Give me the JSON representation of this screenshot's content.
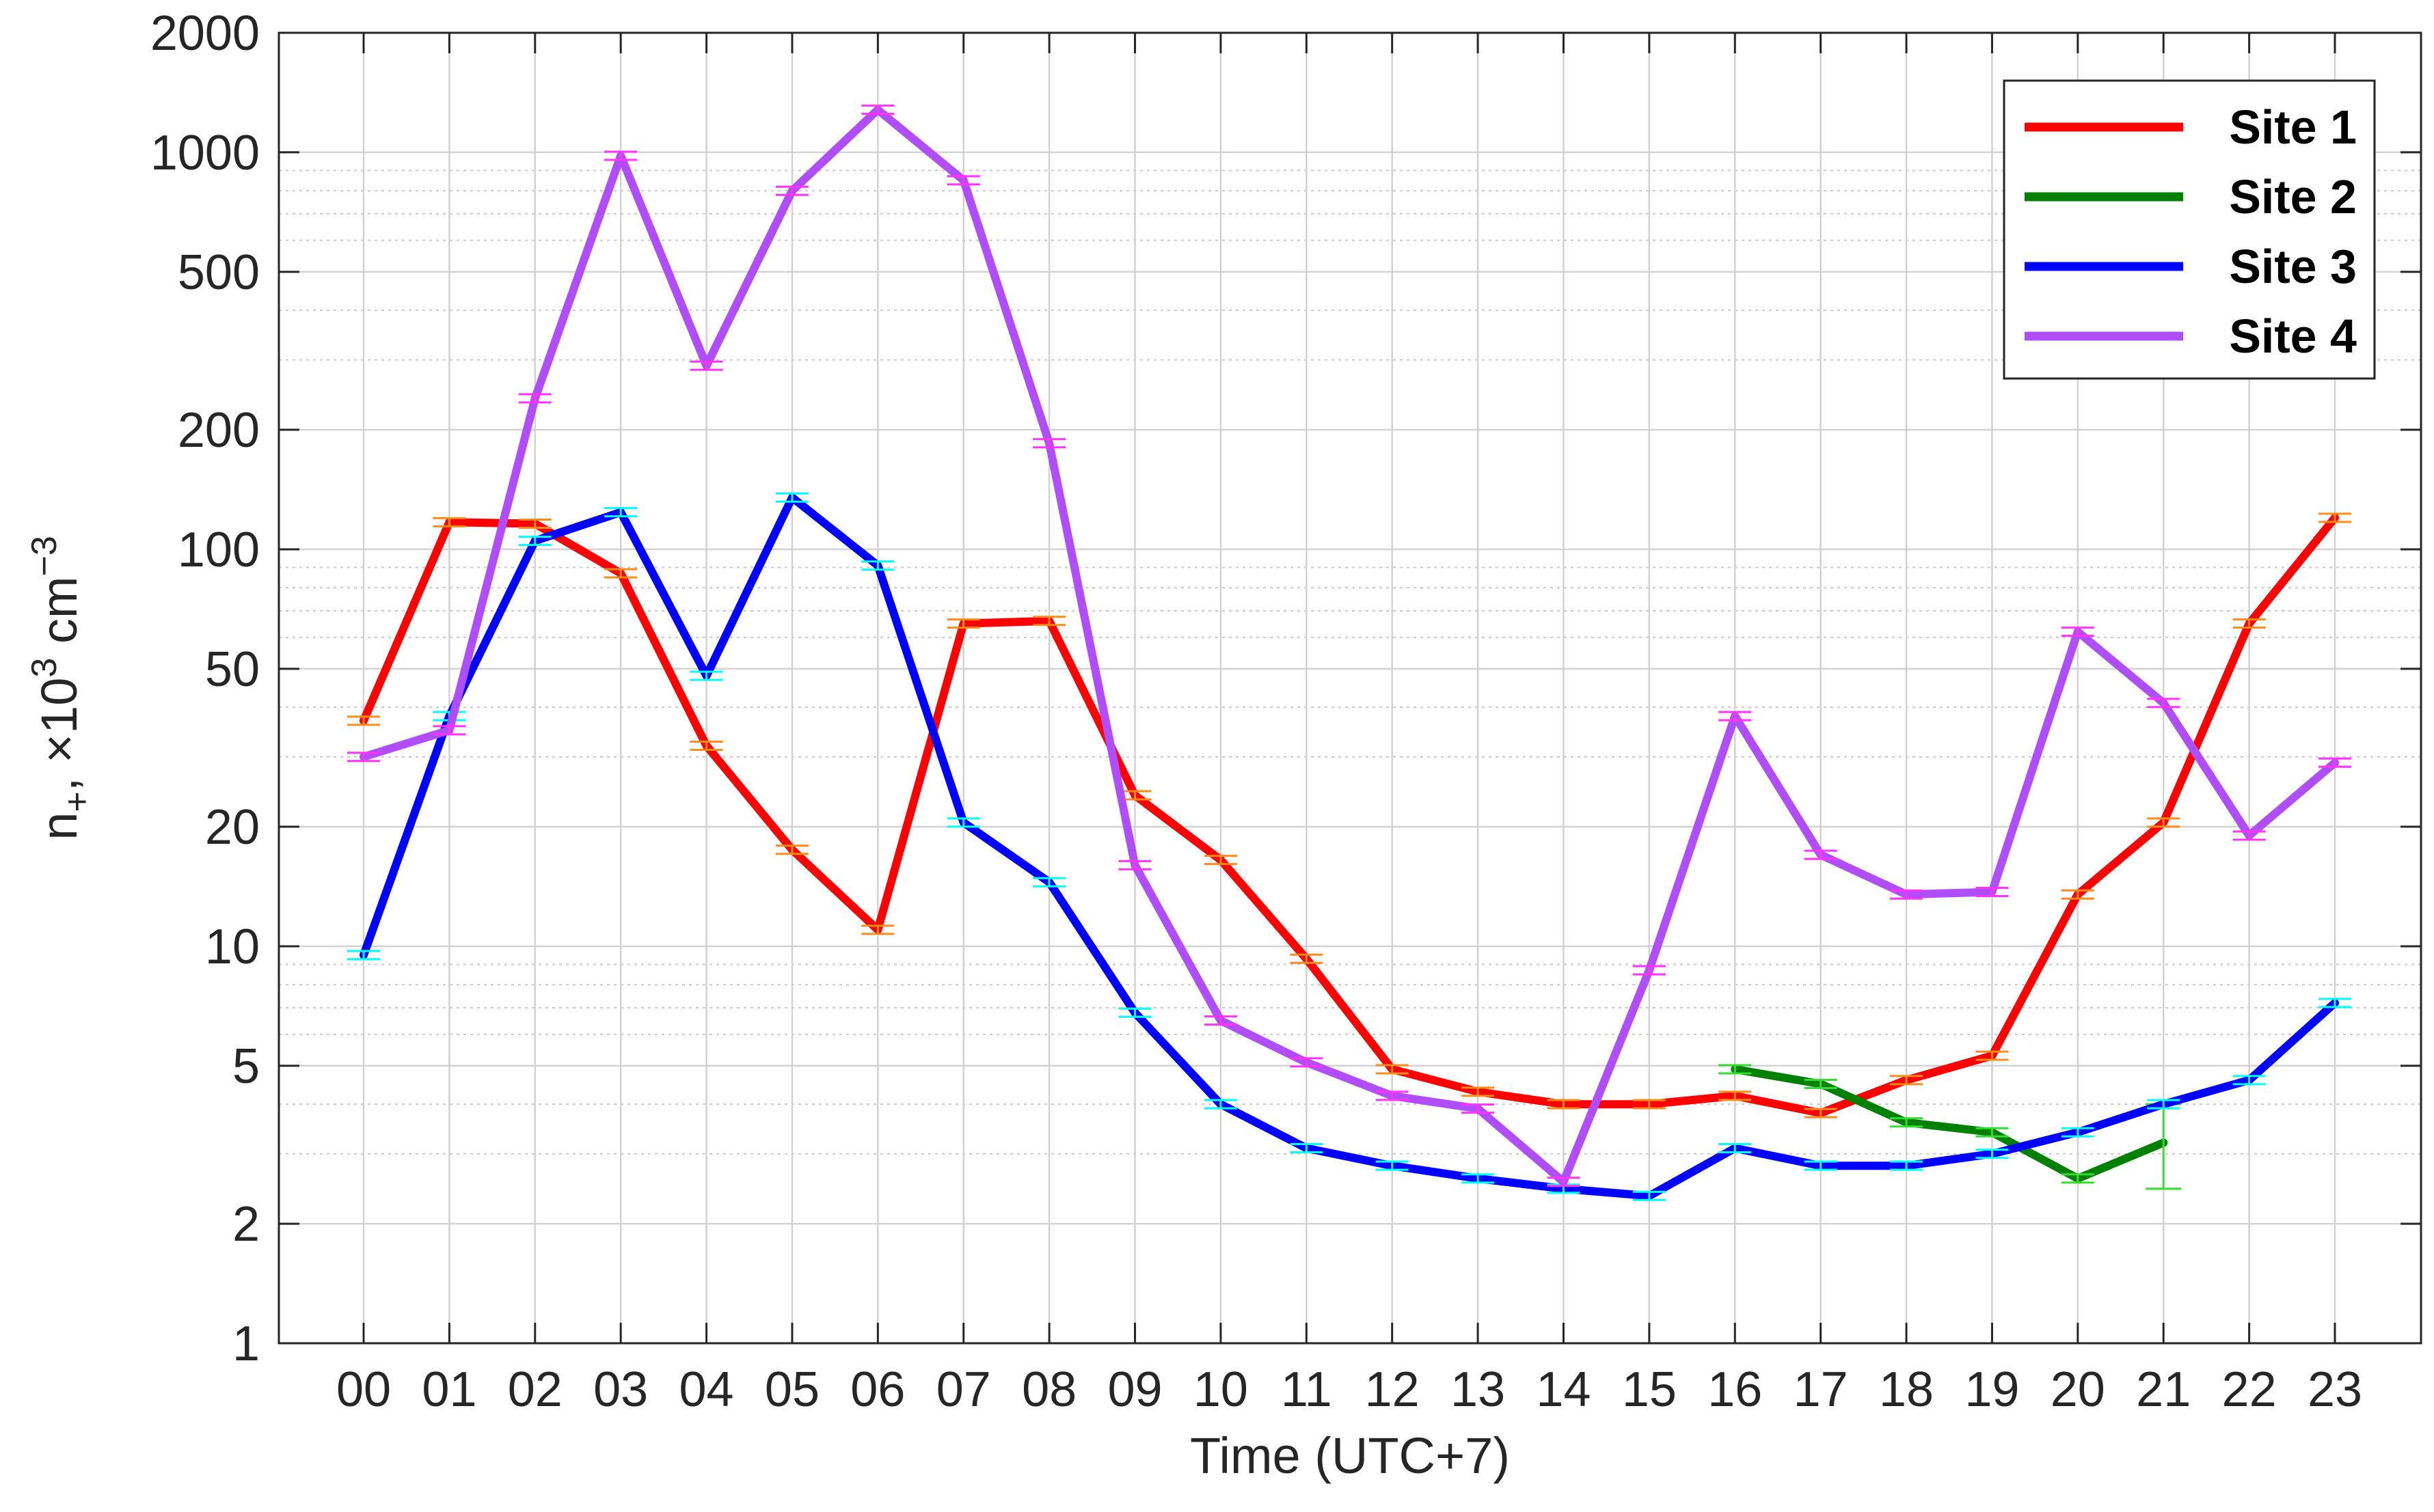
{
  "chart_data": {
    "type": "line",
    "xlabel": "Time (UTC+7)",
    "ylabel": "n+, ×10^3 cm^-3",
    "ylabel_parts": {
      "base": "n",
      "base_sub": "+",
      "mid": ", ×10",
      "exp1": "3",
      "unit": " cm",
      "exp2": "−3"
    },
    "yscale": "log",
    "ylim": [
      1,
      2000
    ],
    "yticks": [
      1,
      2,
      5,
      10,
      20,
      50,
      100,
      200,
      500,
      1000,
      2000
    ],
    "ytick_labels": [
      "1",
      "2",
      "5",
      "10",
      "20",
      "50",
      "100",
      "200",
      "500",
      "1000",
      "2000"
    ],
    "categories": [
      "00",
      "01",
      "02",
      "03",
      "04",
      "05",
      "06",
      "07",
      "08",
      "09",
      "10",
      "11",
      "12",
      "13",
      "14",
      "15",
      "16",
      "17",
      "18",
      "19",
      "20",
      "21",
      "22",
      "23"
    ],
    "grid": true,
    "legend": {
      "position": "top-right"
    },
    "series": [
      {
        "name": "Site 1",
        "color": "#ff0000",
        "bar_color": "#ff8c1a",
        "values": [
          37,
          117,
          116,
          87,
          32,
          17.5,
          11,
          65,
          66,
          24,
          16.5,
          9.3,
          4.9,
          4.3,
          4.0,
          4.0,
          4.2,
          3.8,
          4.6,
          5.3,
          13.5,
          20.5,
          65,
          120
        ]
      },
      {
        "name": "Site 2",
        "color": "#008000",
        "bar_color": "#33dd33",
        "values": [
          null,
          null,
          null,
          null,
          null,
          null,
          null,
          null,
          null,
          null,
          null,
          null,
          null,
          null,
          null,
          null,
          4.9,
          4.5,
          3.6,
          3.4,
          2.6,
          3.2,
          null,
          null
        ],
        "big_error": {
          "index": 21,
          "low": 2.45,
          "high": 4.0
        }
      },
      {
        "name": "Site 3",
        "color": "#0000ff",
        "bar_color": "#00ffff",
        "values": [
          9.5,
          38,
          105,
          124,
          48,
          135,
          91,
          20.5,
          14.5,
          6.8,
          4.0,
          3.1,
          2.8,
          2.6,
          2.45,
          2.35,
          3.1,
          2.8,
          2.8,
          3.0,
          3.4,
          4.0,
          4.6,
          7.2
        ]
      },
      {
        "name": "Site 4",
        "color": "#b04dff",
        "bar_color": "#ff33ff",
        "values": [
          30,
          35,
          240,
          980,
          290,
          800,
          1280,
          850,
          185,
          16,
          6.5,
          5.1,
          4.2,
          3.9,
          2.55,
          8.7,
          38,
          17,
          13.5,
          13.7,
          62,
          41,
          19,
          29
        ]
      }
    ]
  }
}
